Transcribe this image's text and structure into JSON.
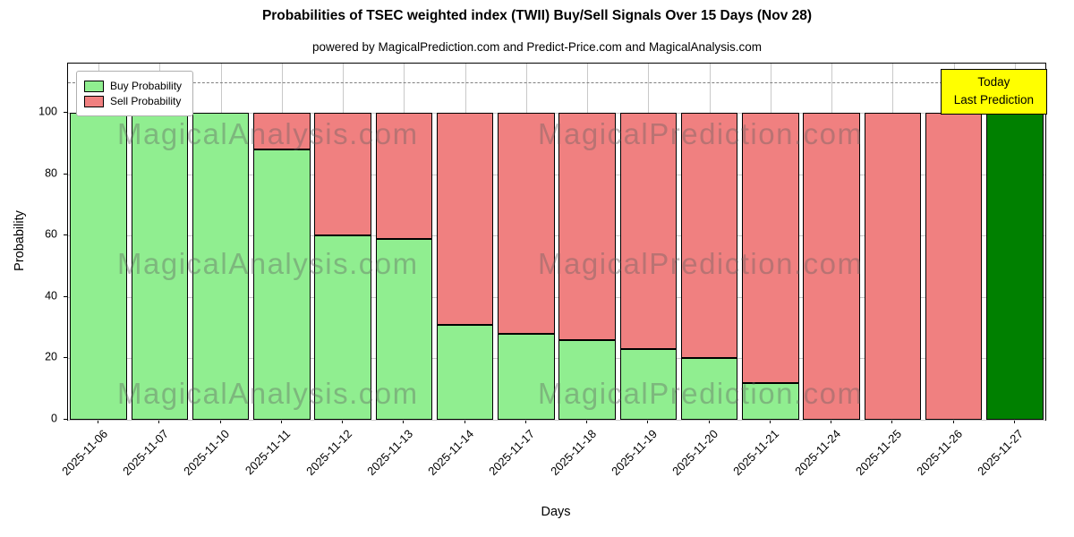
{
  "title": "Probabilities of TSEC weighted index (TWII) Buy/Sell Signals Over 15 Days (Nov 28)",
  "subtitle": "powered by MagicalPrediction.com and Predict-Price.com and MagicalAnalysis.com",
  "legend": {
    "buy": "Buy Probability",
    "sell": "Sell Probability"
  },
  "today_box": {
    "line1": "Today",
    "line2": "Last Prediction"
  },
  "watermarks": {
    "left": "MagicalAnalysis.com",
    "right": "MagicalPrediction.com"
  },
  "colors": {
    "buy": "#90EE90",
    "sell": "#F08080",
    "today_bar": "#008000",
    "highlight_box": "#FFFF00",
    "grid": "#c9c9c9",
    "bar_edge": "#000000"
  },
  "chart_data": {
    "type": "bar",
    "stacked": true,
    "title": "Probabilities of TSEC weighted index (TWII) Buy/Sell Signals Over 15 Days (Nov 28)",
    "xlabel": "Days",
    "ylabel": "Probability",
    "categories": [
      "2025-11-06",
      "2025-11-07",
      "2025-11-10",
      "2025-11-11",
      "2025-11-12",
      "2025-11-13",
      "2025-11-14",
      "2025-11-17",
      "2025-11-18",
      "2025-11-19",
      "2025-11-20",
      "2025-11-21",
      "2025-11-24",
      "2025-11-25",
      "2025-11-26",
      "2025-11-27"
    ],
    "series": [
      {
        "name": "Buy Probability",
        "color": "#90EE90",
        "values": [
          100,
          100,
          100,
          88,
          60,
          59,
          31,
          28,
          26,
          23,
          20,
          12,
          0,
          0,
          0,
          100
        ]
      },
      {
        "name": "Sell Probability",
        "color": "#F08080",
        "values": [
          0,
          0,
          0,
          12,
          40,
          41,
          69,
          72,
          74,
          77,
          80,
          88,
          100,
          100,
          100,
          0
        ]
      }
    ],
    "last_bar_color": "#008000",
    "last_bar_label": "Today / Last Prediction",
    "yticks": [
      0,
      20,
      40,
      60,
      80,
      100
    ],
    "ylim": [
      0,
      116
    ],
    "dashed_line_y": 110,
    "grid": true,
    "legend_position": "upper left"
  }
}
